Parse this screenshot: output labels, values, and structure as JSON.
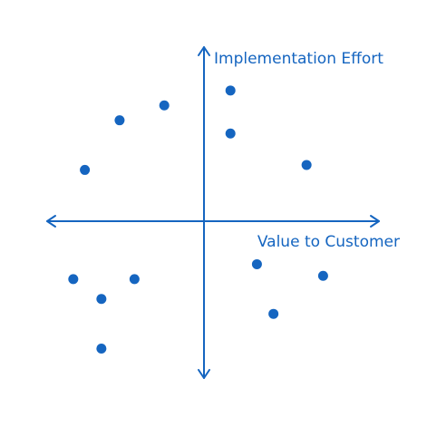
{
  "chart_data": {
    "type": "scatter",
    "xlabel": "Value to Customer",
    "ylabel": "Implementation Effort",
    "xlim": [
      -5,
      5
    ],
    "ylim": [
      -5,
      5
    ],
    "axes_at_origin": true,
    "ticks": false,
    "grid": false,
    "legend": "none",
    "series": [
      {
        "points": [
          {
            "x": -3.6,
            "y": 1.55
          },
          {
            "x": -2.55,
            "y": 3.05
          },
          {
            "x": -1.2,
            "y": 3.5
          },
          {
            "x": 0.8,
            "y": 3.95
          },
          {
            "x": 0.8,
            "y": 2.65
          },
          {
            "x": 3.1,
            "y": 1.7
          },
          {
            "x": 1.6,
            "y": -1.3
          },
          {
            "x": 3.6,
            "y": -1.65
          },
          {
            "x": 2.1,
            "y": -2.8
          },
          {
            "x": -3.95,
            "y": -1.75
          },
          {
            "x": -2.1,
            "y": -1.75
          },
          {
            "x": -3.1,
            "y": -2.35
          },
          {
            "x": -3.1,
            "y": -3.85
          }
        ]
      }
    ]
  },
  "style": {
    "accent": "#1565C0",
    "point_color": "#1565C0",
    "axis_color": "#1565C0",
    "background": "#FFFFFF"
  }
}
